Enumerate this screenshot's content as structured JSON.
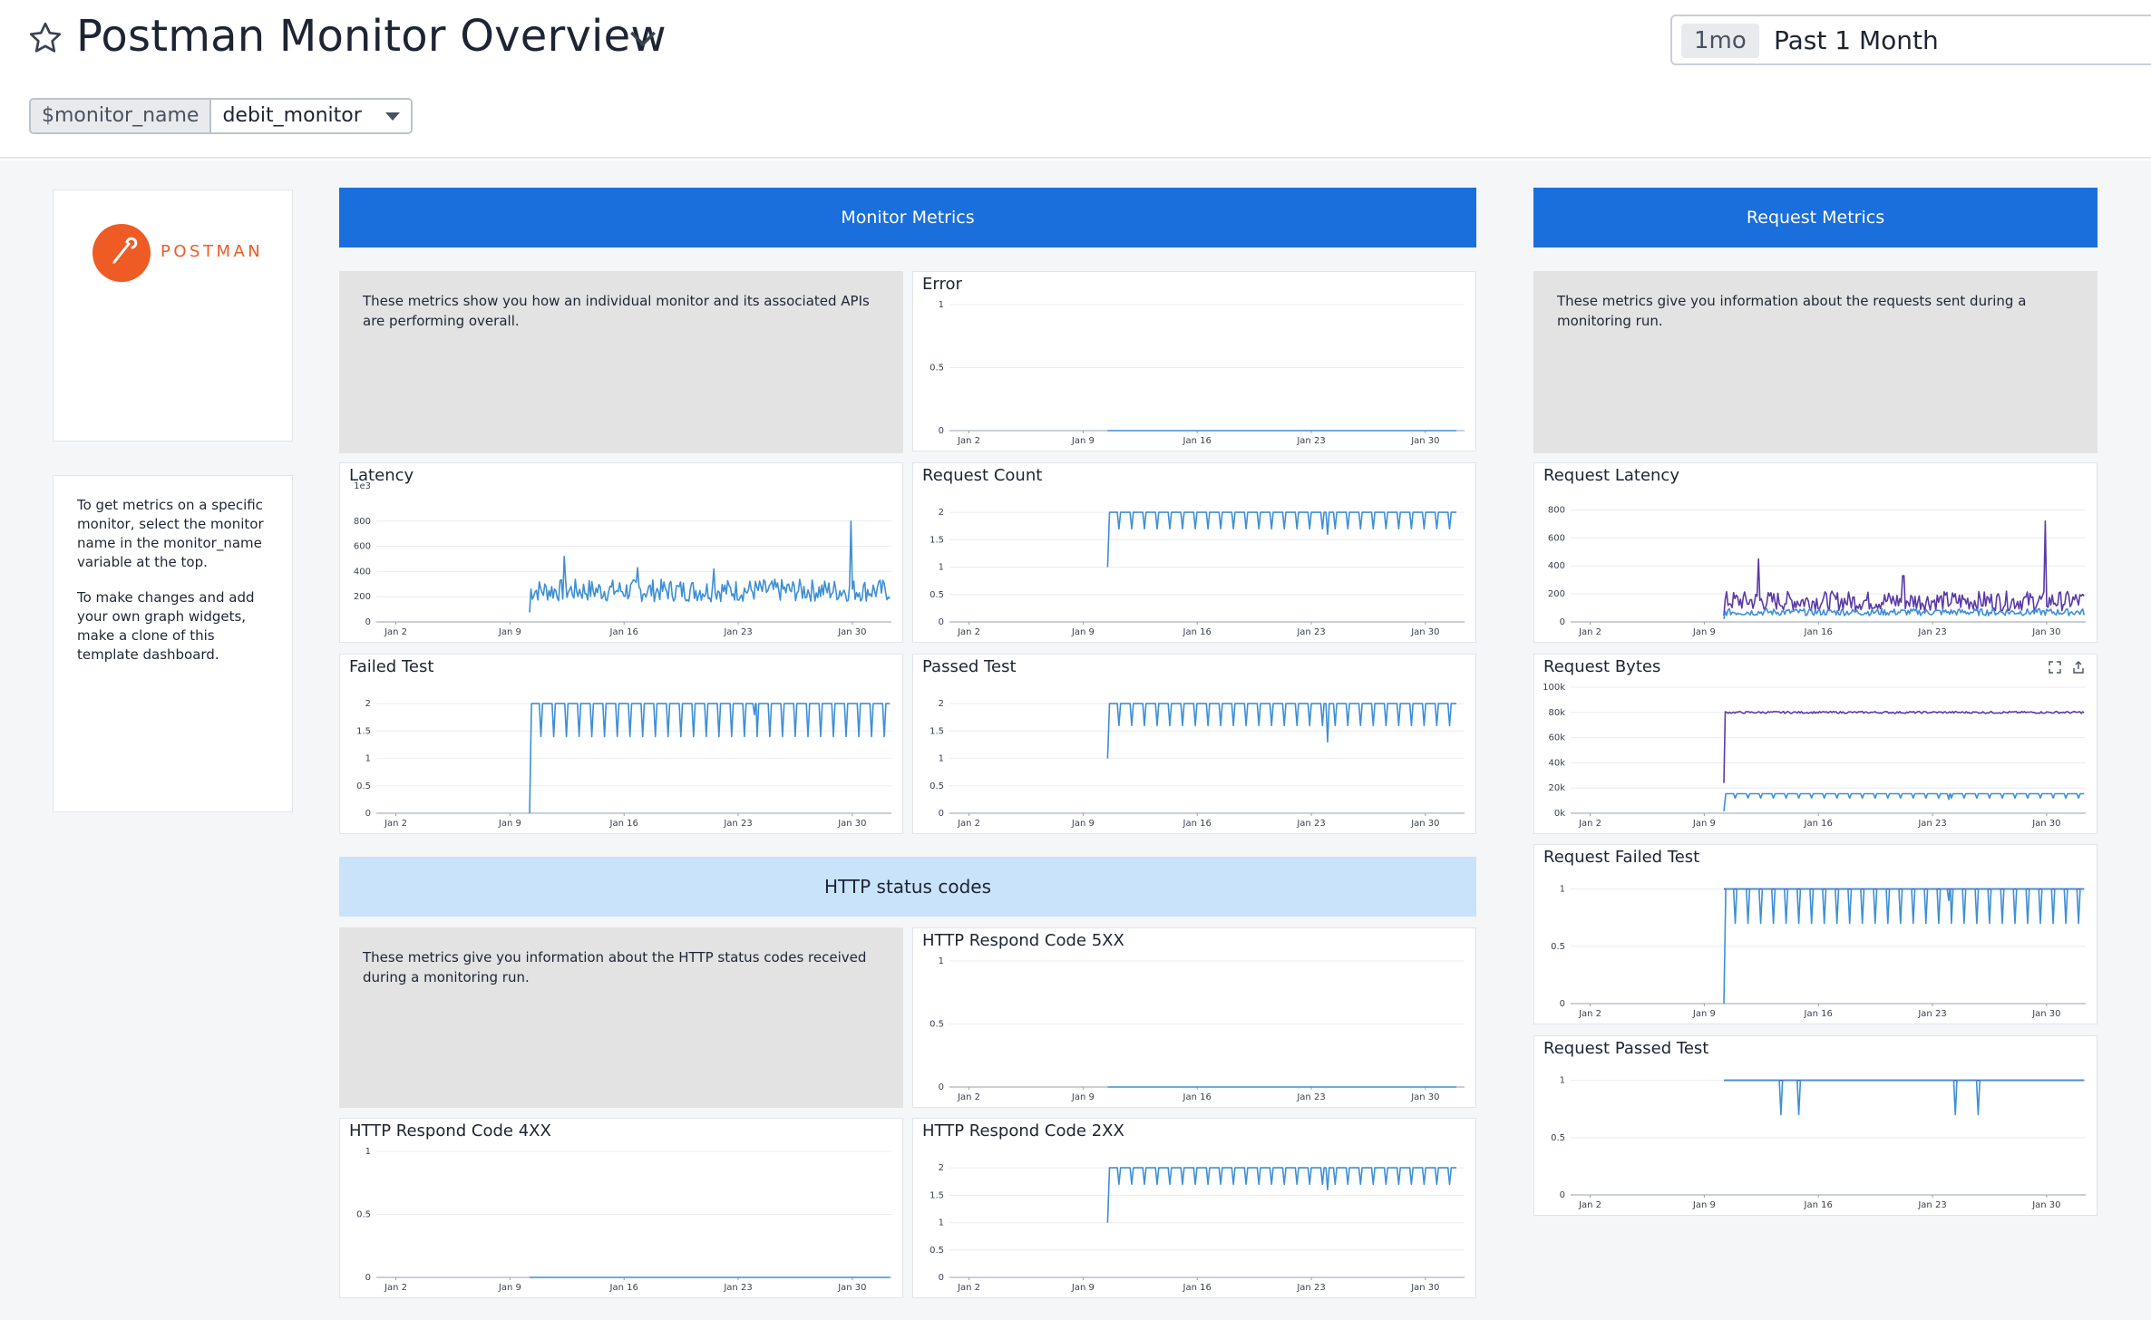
{
  "header": {
    "title": "Postman Monitor Overview",
    "time_pill": "1mo",
    "time_label": "Past 1 Month",
    "variable": {
      "name": "$monitor_name",
      "value": "debit_monitor"
    }
  },
  "logo": {
    "text": "POSTMAN",
    "color": "#ef5b25"
  },
  "help_note": {
    "p1": "To get metrics on a specific monitor, select the monitor name in the monitor_name variable at the top.",
    "p2": "To make changes and add your own graph widgets, make a clone of this template dashboard."
  },
  "groups": {
    "monitor": "Monitor Metrics",
    "request": "Request Metrics",
    "http": "HTTP status codes"
  },
  "notes": {
    "monitor": "These metrics show you how an individual monitor and its associated APIs are performing overall.",
    "request": "These metrics give you information about the requests sent during a monitoring run.",
    "http": "These metrics give you information about the HTTP status codes received during a monitoring run."
  },
  "colors": {
    "series_blue": "#3d8fd6",
    "series_purple": "#5b3aa8",
    "group_blue": "#1a6fdd",
    "group_light": "#c9e3fb"
  },
  "chart_data": [
    {
      "id": "error",
      "type": "line",
      "title": "Error",
      "xticks": [
        "Jan 2",
        "Jan 9",
        "Jan 16",
        "Jan 23",
        "Jan 30"
      ],
      "yticks": [
        "0",
        "0.5",
        "1"
      ],
      "ylim": [
        0,
        1
      ],
      "series": [
        {
          "color": "#3d8fd6",
          "pattern": "flat",
          "start_day": 10.5,
          "end_day": 31.9,
          "base": 0
        }
      ]
    },
    {
      "id": "latency",
      "type": "line",
      "title": "Latency",
      "xticks": [
        "Jan 2",
        "Jan 9",
        "Jan 16",
        "Jan 23",
        "Jan 30"
      ],
      "yticks": [
        "0",
        "200",
        "400",
        "600",
        "800"
      ],
      "yunit": "1e3",
      "ylim": [
        0,
        1000
      ],
      "series": [
        {
          "color": "#3d8fd6",
          "pattern": "noisy",
          "start_day": 10.2,
          "end_day": 32.3,
          "base": 250,
          "amp": 90,
          "spikes": [
            [
              12.3,
              520
            ],
            [
              29.9,
              800
            ],
            [
              21.5,
              420
            ],
            [
              16.8,
              430
            ]
          ]
        }
      ]
    },
    {
      "id": "request_count",
      "type": "line",
      "title": "Request Count",
      "xticks": [
        "Jan 2",
        "Jan 9",
        "Jan 16",
        "Jan 23",
        "Jan 30"
      ],
      "yticks": [
        "0",
        "0.5",
        "1",
        "1.5",
        "2"
      ],
      "ylim": [
        0,
        2.3
      ],
      "series": [
        {
          "color": "#3d8fd6",
          "pattern": "dips",
          "start_day": 10.5,
          "end_day": 31.9,
          "base": 2,
          "dip": 1.7,
          "start_val": 1,
          "deep_dip": [
            24,
            1.6
          ]
        }
      ]
    },
    {
      "id": "failed_test",
      "type": "line",
      "title": "Failed Test",
      "xticks": [
        "Jan 2",
        "Jan 9",
        "Jan 16",
        "Jan 23",
        "Jan 30"
      ],
      "yticks": [
        "0",
        "0.5",
        "1",
        "1.5",
        "2"
      ],
      "ylim": [
        0,
        2.3
      ],
      "series": [
        {
          "color": "#3d8fd6",
          "pattern": "dips",
          "start_day": 10.2,
          "end_day": 32.3,
          "base": 2,
          "dip": 1.4,
          "start_val": 0,
          "deep_dip": [
            24,
            1.8
          ]
        }
      ]
    },
    {
      "id": "passed_test",
      "type": "line",
      "title": "Passed Test",
      "xticks": [
        "Jan 2",
        "Jan 9",
        "Jan 16",
        "Jan 23",
        "Jan 30"
      ],
      "yticks": [
        "0",
        "0.5",
        "1",
        "1.5",
        "2"
      ],
      "ylim": [
        0,
        2.3
      ],
      "series": [
        {
          "color": "#3d8fd6",
          "pattern": "dips",
          "start_day": 10.5,
          "end_day": 31.9,
          "base": 2,
          "dip": 1.6,
          "start_val": 1,
          "deep_dip": [
            24,
            1.3
          ]
        }
      ]
    },
    {
      "id": "http_5xx",
      "type": "line",
      "title": "HTTP Respond Code 5XX",
      "xticks": [
        "Jan 2",
        "Jan 9",
        "Jan 16",
        "Jan 23",
        "Jan 30"
      ],
      "yticks": [
        "0",
        "0.5",
        "1"
      ],
      "ylim": [
        0,
        1
      ],
      "series": [
        {
          "color": "#3d8fd6",
          "pattern": "flat",
          "start_day": 10.5,
          "end_day": 31.9,
          "base": 0
        }
      ]
    },
    {
      "id": "http_4xx",
      "type": "line",
      "title": "HTTP Respond Code 4XX",
      "xticks": [
        "Jan 2",
        "Jan 9",
        "Jan 16",
        "Jan 23",
        "Jan 30"
      ],
      "yticks": [
        "0",
        "0.5",
        "1"
      ],
      "ylim": [
        0,
        1
      ],
      "series": [
        {
          "color": "#3d8fd6",
          "pattern": "flat",
          "start_day": 10.2,
          "end_day": 32.3,
          "base": 0
        }
      ]
    },
    {
      "id": "http_2xx",
      "type": "line",
      "title": "HTTP Respond Code 2XX",
      "xticks": [
        "Jan 2",
        "Jan 9",
        "Jan 16",
        "Jan 23",
        "Jan 30"
      ],
      "yticks": [
        "0",
        "0.5",
        "1",
        "1.5",
        "2"
      ],
      "ylim": [
        0,
        2.3
      ],
      "series": [
        {
          "color": "#3d8fd6",
          "pattern": "dips",
          "start_day": 10.5,
          "end_day": 31.9,
          "base": 2,
          "dip": 1.7,
          "start_val": 1,
          "deep_dip": [
            24,
            1.6
          ]
        }
      ]
    },
    {
      "id": "request_latency",
      "type": "line",
      "title": "Request Latency",
      "xticks": [
        "Jan 2",
        "Jan 9",
        "Jan 16",
        "Jan 23",
        "Jan 30"
      ],
      "yticks": [
        "0",
        "200",
        "400",
        "600",
        "800"
      ],
      "ylim": [
        0,
        900
      ],
      "series": [
        {
          "color": "#5b3aa8",
          "pattern": "noisy",
          "start_day": 10.2,
          "end_day": 32.3,
          "base": 150,
          "amp": 70,
          "spikes": [
            [
              12.3,
              450
            ],
            [
              29.9,
              720
            ],
            [
              21.2,
              330
            ]
          ]
        },
        {
          "color": "#3d8fd6",
          "pattern": "noisy",
          "start_day": 10.2,
          "end_day": 32.3,
          "base": 70,
          "amp": 25,
          "spikes": []
        }
      ]
    },
    {
      "id": "request_bytes",
      "type": "line",
      "title": "Request Bytes",
      "xticks": [
        "Jan 2",
        "Jan 9",
        "Jan 16",
        "Jan 23",
        "Jan 30"
      ],
      "yticks": [
        "0k",
        "20k",
        "40k",
        "60k",
        "80k",
        "100k"
      ],
      "ylim": [
        0,
        100000
      ],
      "series": [
        {
          "color": "#5b3aa8",
          "pattern": "noisy",
          "start_day": 10.2,
          "end_day": 32.3,
          "base": 80000,
          "amp": 800,
          "spikes": []
        },
        {
          "color": "#3d8fd6",
          "pattern": "dips",
          "start_day": 10.2,
          "end_day": 32.3,
          "base": 15500,
          "dip": 12000,
          "start_val": 1500,
          "deep_dip": [
            24,
            11000
          ]
        }
      ]
    },
    {
      "id": "request_failed_test",
      "type": "line",
      "title": "Request Failed Test",
      "xticks": [
        "Jan 2",
        "Jan 9",
        "Jan 16",
        "Jan 23",
        "Jan 30"
      ],
      "yticks": [
        "0",
        "0.5",
        "1"
      ],
      "ylim": [
        0,
        1.1
      ],
      "series": [
        {
          "color": "#5b3aa8",
          "pattern": "flat",
          "start_day": 10.2,
          "end_day": 32.3,
          "base": 1
        },
        {
          "color": "#3d8fd6",
          "pattern": "dips",
          "start_day": 10.2,
          "end_day": 32.3,
          "base": 1,
          "dip": 0.7,
          "start_val": 0,
          "deep_dip": [
            24,
            0.9
          ]
        }
      ]
    },
    {
      "id": "request_passed_test",
      "type": "line",
      "title": "Request Passed Test",
      "xticks": [
        "Jan 2",
        "Jan 9",
        "Jan 16",
        "Jan 23",
        "Jan 30"
      ],
      "yticks": [
        "0",
        "0.5",
        "1"
      ],
      "ylim": [
        0,
        1.1
      ],
      "series": [
        {
          "color": "#5b3aa8",
          "pattern": "flat",
          "start_day": 10.2,
          "end_day": 32.3,
          "base": 1
        },
        {
          "color": "#3d8fd6",
          "pattern": "fewdips",
          "start_day": 10.2,
          "end_day": 32.3,
          "base": 1,
          "dips_at": [
            [
              13.7,
              0.7
            ],
            [
              14.8,
              0.7
            ],
            [
              24.4,
              0.7
            ],
            [
              25.8,
              0.7
            ]
          ]
        }
      ]
    }
  ]
}
